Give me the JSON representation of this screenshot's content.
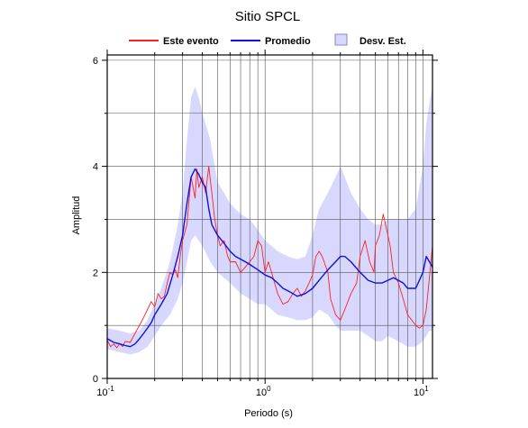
{
  "chart_data": {
    "type": "line",
    "title": "Sitio SPCL",
    "xlabel": "Periodo (s)",
    "ylabel": "Amplitud",
    "x_scale": "log",
    "xlim": [
      0.1,
      11.5
    ],
    "ylim": [
      0,
      6.1
    ],
    "grid": true,
    "legend_position": "top",
    "x_ticks": [
      {
        "value": 0.1,
        "base": "10",
        "exp": "-1"
      },
      {
        "value": 1,
        "base": "10",
        "exp": "0"
      },
      {
        "value": 10,
        "base": "10",
        "exp": "1"
      }
    ],
    "y_ticks": [
      {
        "value": 0,
        "label": "0"
      },
      {
        "value": 2,
        "label": "2"
      },
      {
        "value": 4,
        "label": "4"
      },
      {
        "value": 6,
        "label": "6"
      }
    ],
    "legend": [
      {
        "label": "Este evento",
        "kind": "line",
        "color": "#ff2020"
      },
      {
        "label": "Promedio",
        "kind": "line",
        "color": "#1010dd"
      },
      {
        "label": "Desv. Est.",
        "kind": "band",
        "color": "#d8d8ff"
      }
    ],
    "series": [
      {
        "name": "Este evento",
        "color": "#ff2020",
        "points": [
          [
            0.1,
            0.72
          ],
          [
            0.105,
            0.6
          ],
          [
            0.11,
            0.65
          ],
          [
            0.115,
            0.58
          ],
          [
            0.12,
            0.66
          ],
          [
            0.125,
            0.6
          ],
          [
            0.13,
            0.7
          ],
          [
            0.14,
            0.68
          ],
          [
            0.15,
            0.85
          ],
          [
            0.16,
            1.0
          ],
          [
            0.17,
            1.15
          ],
          [
            0.18,
            1.3
          ],
          [
            0.19,
            1.45
          ],
          [
            0.2,
            1.35
          ],
          [
            0.21,
            1.6
          ],
          [
            0.22,
            1.5
          ],
          [
            0.23,
            1.55
          ],
          [
            0.24,
            1.8
          ],
          [
            0.25,
            2.0
          ],
          [
            0.26,
            1.95
          ],
          [
            0.27,
            2.05
          ],
          [
            0.28,
            1.9
          ],
          [
            0.29,
            2.3
          ],
          [
            0.3,
            2.6
          ],
          [
            0.32,
            2.9
          ],
          [
            0.34,
            3.8
          ],
          [
            0.35,
            3.6
          ],
          [
            0.36,
            3.4
          ],
          [
            0.37,
            3.95
          ],
          [
            0.38,
            3.6
          ],
          [
            0.4,
            3.8
          ],
          [
            0.42,
            3.5
          ],
          [
            0.44,
            4.0
          ],
          [
            0.46,
            3.5
          ],
          [
            0.48,
            3.0
          ],
          [
            0.5,
            2.7
          ],
          [
            0.52,
            2.5
          ],
          [
            0.55,
            2.6
          ],
          [
            0.58,
            2.3
          ],
          [
            0.6,
            2.2
          ],
          [
            0.65,
            2.2
          ],
          [
            0.7,
            2.0
          ],
          [
            0.75,
            2.1
          ],
          [
            0.8,
            2.2
          ],
          [
            0.85,
            2.3
          ],
          [
            0.9,
            2.6
          ],
          [
            0.95,
            2.5
          ],
          [
            1.0,
            2.0
          ],
          [
            1.05,
            2.2
          ],
          [
            1.1,
            2.0
          ],
          [
            1.2,
            1.6
          ],
          [
            1.3,
            1.4
          ],
          [
            1.4,
            1.45
          ],
          [
            1.5,
            1.6
          ],
          [
            1.6,
            1.7
          ],
          [
            1.7,
            1.55
          ],
          [
            1.8,
            1.65
          ],
          [
            1.9,
            1.8
          ],
          [
            2.0,
            1.95
          ],
          [
            2.1,
            2.3
          ],
          [
            2.2,
            2.4
          ],
          [
            2.3,
            2.3
          ],
          [
            2.5,
            2.0
          ],
          [
            2.6,
            1.5
          ],
          [
            2.8,
            1.2
          ],
          [
            3.0,
            1.1
          ],
          [
            3.2,
            1.3
          ],
          [
            3.5,
            1.6
          ],
          [
            3.8,
            1.8
          ],
          [
            4.0,
            2.3
          ],
          [
            4.3,
            2.6
          ],
          [
            4.6,
            2.2
          ],
          [
            4.9,
            2.0
          ],
          [
            5.0,
            2.5
          ],
          [
            5.3,
            2.7
          ],
          [
            5.6,
            3.1
          ],
          [
            5.9,
            2.8
          ],
          [
            6.2,
            2.5
          ],
          [
            6.5,
            2.0
          ],
          [
            7.0,
            1.8
          ],
          [
            7.5,
            1.5
          ],
          [
            8.0,
            1.2
          ],
          [
            8.5,
            1.1
          ],
          [
            9.0,
            1.0
          ],
          [
            9.5,
            0.95
          ],
          [
            10.0,
            1.0
          ],
          [
            10.5,
            1.3
          ],
          [
            11.0,
            1.9
          ],
          [
            11.5,
            2.5
          ]
        ]
      },
      {
        "name": "Promedio",
        "color": "#1010dd",
        "points": [
          [
            0.1,
            0.75
          ],
          [
            0.11,
            0.68
          ],
          [
            0.12,
            0.65
          ],
          [
            0.13,
            0.62
          ],
          [
            0.14,
            0.6
          ],
          [
            0.15,
            0.65
          ],
          [
            0.16,
            0.75
          ],
          [
            0.17,
            0.85
          ],
          [
            0.18,
            0.95
          ],
          [
            0.19,
            1.05
          ],
          [
            0.2,
            1.2
          ],
          [
            0.22,
            1.4
          ],
          [
            0.24,
            1.6
          ],
          [
            0.26,
            1.95
          ],
          [
            0.28,
            2.3
          ],
          [
            0.3,
            2.7
          ],
          [
            0.32,
            3.3
          ],
          [
            0.34,
            3.8
          ],
          [
            0.36,
            3.95
          ],
          [
            0.38,
            3.85
          ],
          [
            0.4,
            3.7
          ],
          [
            0.42,
            3.6
          ],
          [
            0.44,
            3.2
          ],
          [
            0.46,
            2.9
          ],
          [
            0.5,
            2.7
          ],
          [
            0.55,
            2.55
          ],
          [
            0.6,
            2.4
          ],
          [
            0.65,
            2.3
          ],
          [
            0.7,
            2.25
          ],
          [
            0.75,
            2.2
          ],
          [
            0.8,
            2.15
          ],
          [
            0.9,
            2.05
          ],
          [
            1.0,
            1.95
          ],
          [
            1.1,
            1.9
          ],
          [
            1.2,
            1.8
          ],
          [
            1.3,
            1.7
          ],
          [
            1.4,
            1.65
          ],
          [
            1.5,
            1.6
          ],
          [
            1.6,
            1.55
          ],
          [
            1.8,
            1.6
          ],
          [
            2.0,
            1.7
          ],
          [
            2.2,
            1.85
          ],
          [
            2.5,
            2.05
          ],
          [
            2.8,
            2.2
          ],
          [
            3.0,
            2.3
          ],
          [
            3.2,
            2.3
          ],
          [
            3.5,
            2.2
          ],
          [
            4.0,
            2.0
          ],
          [
            4.5,
            1.85
          ],
          [
            5.0,
            1.8
          ],
          [
            5.5,
            1.8
          ],
          [
            6.0,
            1.85
          ],
          [
            6.5,
            1.9
          ],
          [
            7.0,
            1.85
          ],
          [
            7.5,
            1.8
          ],
          [
            8.0,
            1.7
          ],
          [
            9.0,
            1.7
          ],
          [
            10.0,
            2.0
          ],
          [
            10.5,
            2.3
          ],
          [
            11.0,
            2.2
          ],
          [
            11.5,
            2.1
          ]
        ]
      }
    ],
    "band": {
      "name": "Desv. Est.",
      "color": "#d8d8ff",
      "upper": [
        [
          0.1,
          0.95
        ],
        [
          0.12,
          0.9
        ],
        [
          0.14,
          0.85
        ],
        [
          0.16,
          0.9
        ],
        [
          0.18,
          1.1
        ],
        [
          0.2,
          1.4
        ],
        [
          0.22,
          1.7
        ],
        [
          0.25,
          2.2
        ],
        [
          0.28,
          2.9
        ],
        [
          0.3,
          3.5
        ],
        [
          0.32,
          4.5
        ],
        [
          0.34,
          5.3
        ],
        [
          0.36,
          5.5
        ],
        [
          0.38,
          5.3
        ],
        [
          0.4,
          5.0
        ],
        [
          0.42,
          4.8
        ],
        [
          0.45,
          4.5
        ],
        [
          0.48,
          4.0
        ],
        [
          0.5,
          3.7
        ],
        [
          0.55,
          3.5
        ],
        [
          0.6,
          3.3
        ],
        [
          0.7,
          3.1
        ],
        [
          0.8,
          3.0
        ],
        [
          0.9,
          2.8
        ],
        [
          1.0,
          2.6
        ],
        [
          1.1,
          2.5
        ],
        [
          1.2,
          2.4
        ],
        [
          1.4,
          2.3
        ],
        [
          1.6,
          2.25
        ],
        [
          1.8,
          2.3
        ],
        [
          2.0,
          2.7
        ],
        [
          2.2,
          3.2
        ],
        [
          2.4,
          3.4
        ],
        [
          2.6,
          3.6
        ],
        [
          2.8,
          3.8
        ],
        [
          3.0,
          4.0
        ],
        [
          3.2,
          3.8
        ],
        [
          3.5,
          3.5
        ],
        [
          4.0,
          3.2
        ],
        [
          4.5,
          3.0
        ],
        [
          5.0,
          2.9
        ],
        [
          5.5,
          2.9
        ],
        [
          6.0,
          3.0
        ],
        [
          7.0,
          3.0
        ],
        [
          8.0,
          3.0
        ],
        [
          9.0,
          3.2
        ],
        [
          10.0,
          4.0
        ],
        [
          10.5,
          4.8
        ],
        [
          11.0,
          5.2
        ],
        [
          11.5,
          5.5
        ]
      ],
      "lower": [
        [
          0.1,
          0.55
        ],
        [
          0.12,
          0.5
        ],
        [
          0.14,
          0.45
        ],
        [
          0.16,
          0.5
        ],
        [
          0.18,
          0.6
        ],
        [
          0.2,
          0.8
        ],
        [
          0.22,
          1.0
        ],
        [
          0.25,
          1.2
        ],
        [
          0.28,
          1.5
        ],
        [
          0.3,
          1.8
        ],
        [
          0.32,
          2.2
        ],
        [
          0.34,
          2.6
        ],
        [
          0.36,
          2.7
        ],
        [
          0.38,
          2.6
        ],
        [
          0.4,
          2.5
        ],
        [
          0.45,
          2.2
        ],
        [
          0.5,
          2.0
        ],
        [
          0.55,
          1.9
        ],
        [
          0.6,
          1.8
        ],
        [
          0.7,
          1.6
        ],
        [
          0.8,
          1.5
        ],
        [
          0.9,
          1.4
        ],
        [
          1.0,
          1.4
        ],
        [
          1.1,
          1.3
        ],
        [
          1.2,
          1.2
        ],
        [
          1.4,
          1.15
        ],
        [
          1.6,
          1.1
        ],
        [
          1.8,
          1.1
        ],
        [
          2.0,
          1.15
        ],
        [
          2.2,
          1.3
        ],
        [
          2.5,
          1.2
        ],
        [
          2.8,
          1.0
        ],
        [
          3.0,
          0.9
        ],
        [
          3.5,
          0.9
        ],
        [
          4.0,
          0.9
        ],
        [
          4.5,
          0.8
        ],
        [
          5.0,
          0.7
        ],
        [
          5.5,
          0.7
        ],
        [
          6.0,
          0.8
        ],
        [
          7.0,
          0.7
        ],
        [
          8.0,
          0.6
        ],
        [
          9.0,
          0.6
        ],
        [
          10.0,
          0.7
        ],
        [
          10.5,
          0.8
        ],
        [
          11.0,
          0.9
        ],
        [
          11.5,
          0.9
        ]
      ]
    }
  }
}
